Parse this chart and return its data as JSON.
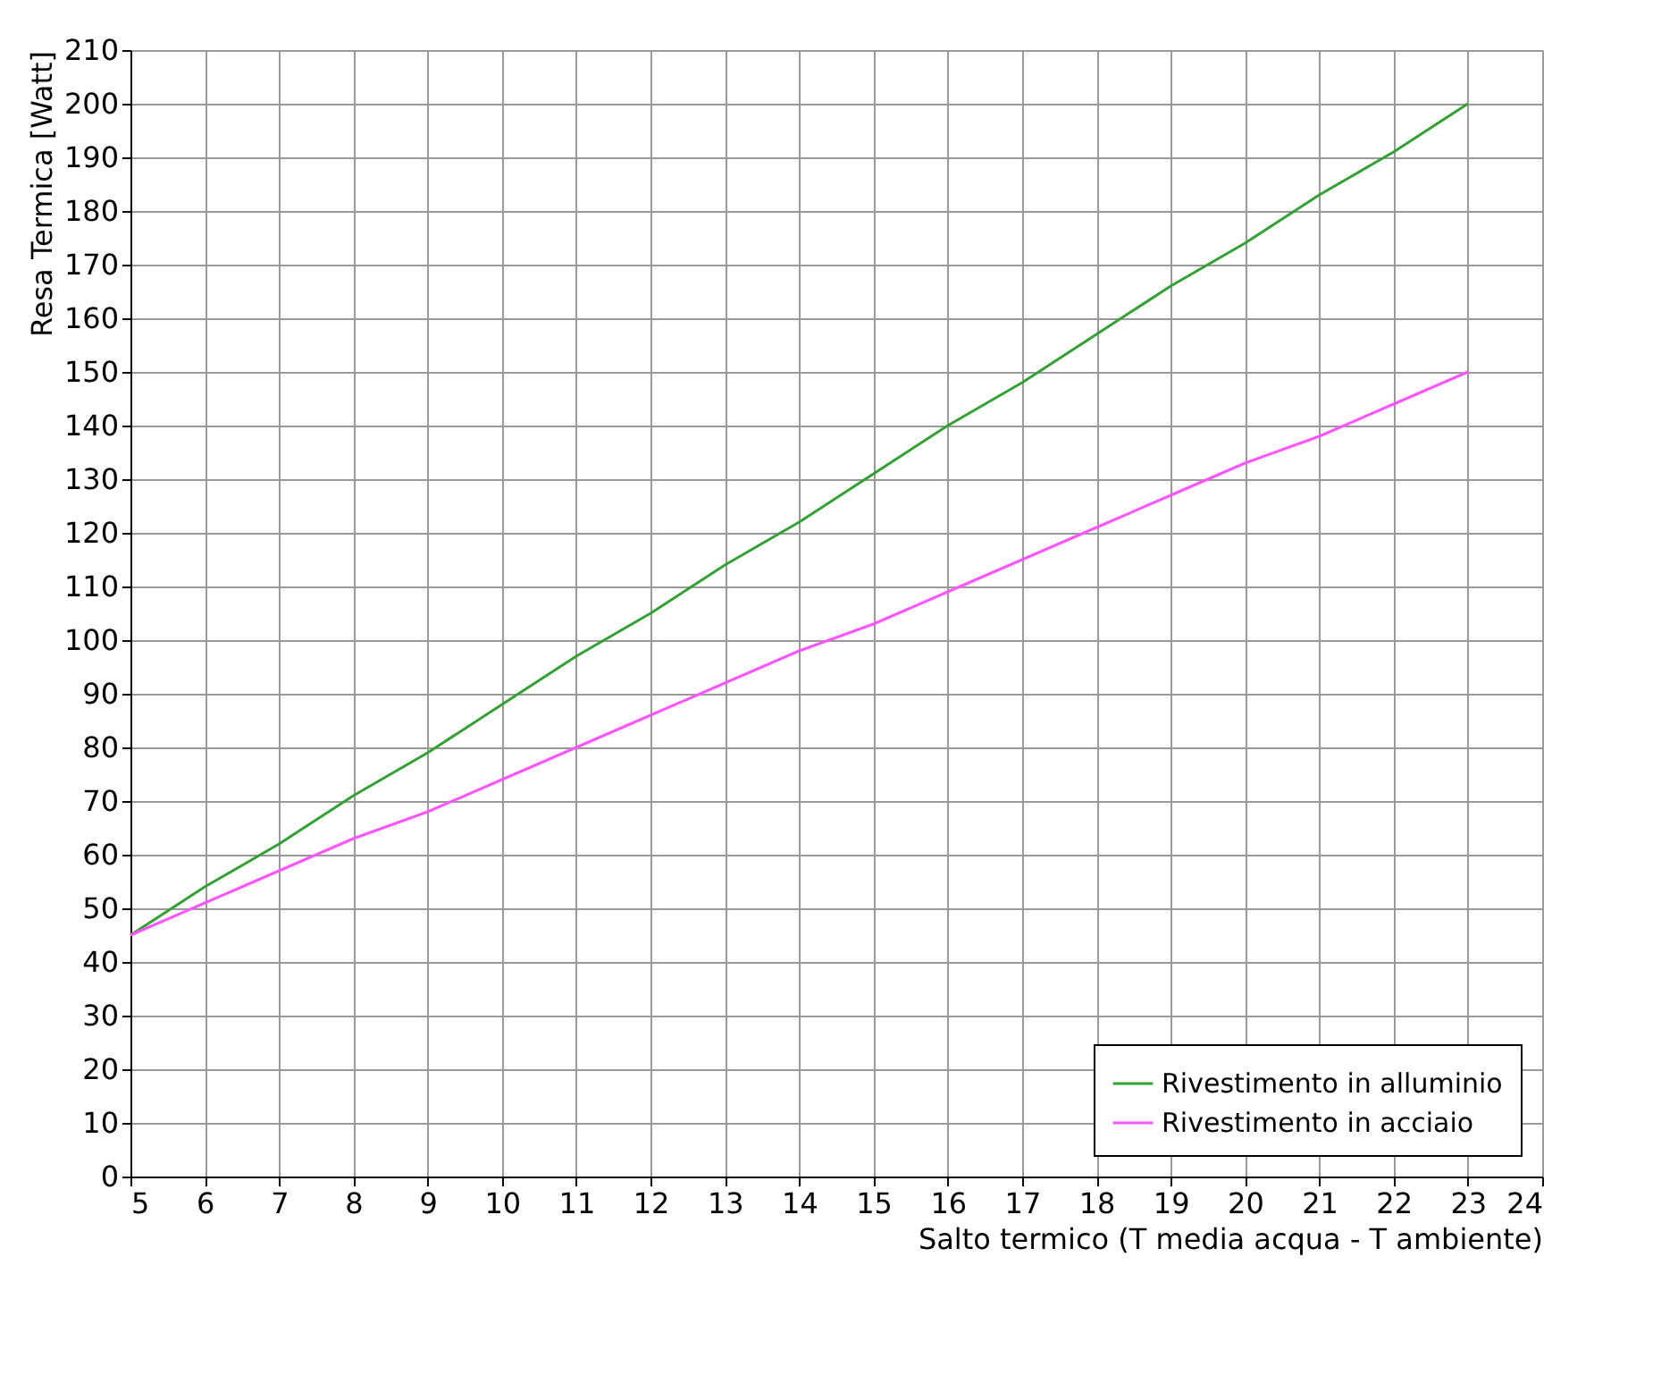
{
  "chart_data": {
    "type": "line",
    "xlabel": "Salto termico (T media acqua - T ambiente)",
    "ylabel": "Resa Termica [Watt]",
    "xlim": [
      5,
      24
    ],
    "xticks": [
      5,
      6,
      7,
      8,
      9,
      10,
      11,
      12,
      13,
      14,
      15,
      16,
      17,
      18,
      19,
      20,
      21,
      22,
      23,
      24
    ],
    "ylim": [
      0,
      210
    ],
    "yticks": [
      0,
      10,
      20,
      30,
      40,
      50,
      60,
      70,
      80,
      90,
      100,
      110,
      120,
      130,
      140,
      150,
      160,
      170,
      180,
      190,
      200,
      210
    ],
    "grid": true,
    "legend": "bottom right",
    "series": [
      {
        "name": "Rivestimento in alluminio",
        "color": "#33a033",
        "x": [
          5,
          6,
          7,
          8,
          9,
          10,
          11,
          12,
          13,
          14,
          15,
          16,
          17,
          18,
          19,
          20,
          21,
          22,
          23
        ],
        "values": [
          45,
          54,
          62,
          71,
          79,
          88,
          97,
          105,
          114,
          122,
          131,
          140,
          148,
          157,
          166,
          174,
          183,
          191,
          200
        ]
      },
      {
        "name": "Rivestimento in acciaio",
        "color": "#ff55ff",
        "x": [
          5,
          6,
          7,
          8,
          9,
          10,
          11,
          12,
          13,
          14,
          15,
          16,
          17,
          18,
          19,
          20,
          21,
          22,
          23
        ],
        "values": [
          45,
          51,
          57,
          63,
          68,
          74,
          80,
          86,
          92,
          98,
          103,
          109,
          115,
          121,
          127,
          133,
          138,
          144,
          150
        ]
      }
    ]
  }
}
